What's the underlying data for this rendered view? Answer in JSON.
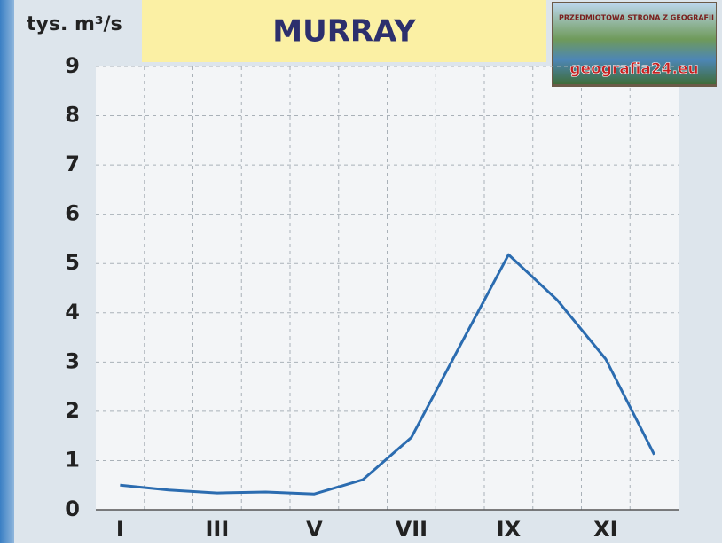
{
  "chart_data": {
    "type": "line",
    "title": "MURRAY",
    "y_label": "tys. m³/s",
    "annotations": [
      "PRZEDMIOTOWA STRONA Z GEOGRAFII",
      "geografia24.eu"
    ],
    "categories": [
      "I",
      null,
      "III",
      null,
      "V",
      null,
      "VII",
      null,
      "IX",
      null,
      "XI",
      null
    ],
    "series": [
      {
        "name": "MURRAY",
        "color": "#2b6cb0",
        "values": [
          0.5,
          0.4,
          0.34,
          0.36,
          0.32,
          0.61,
          1.47,
          3.33,
          5.18,
          4.26,
          3.06,
          1.12
        ]
      }
    ],
    "ylim": [
      0,
      9
    ],
    "yticks": [
      0,
      1,
      2,
      3,
      4,
      5,
      6,
      7,
      8,
      9
    ],
    "grid": true
  }
}
